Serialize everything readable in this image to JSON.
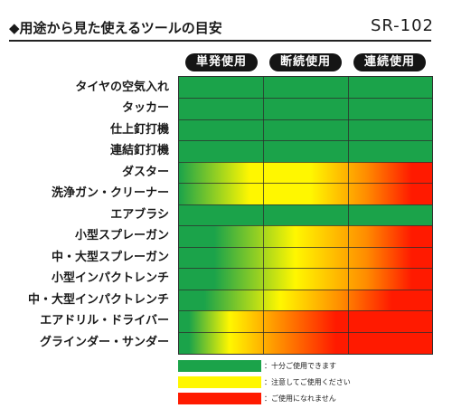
{
  "header": {
    "title": "◆用途から見た使えるツールの目安",
    "model": "SR-102"
  },
  "columns": [
    {
      "label": "単発使用"
    },
    {
      "label": "断続使用"
    },
    {
      "label": "連続使用"
    }
  ],
  "rows": [
    {
      "label": "タイヤの空気入れ",
      "rating": "green"
    },
    {
      "label": "タッカー",
      "rating": "green"
    },
    {
      "label": "仕上釘打機",
      "rating": "green"
    },
    {
      "label": "連結釘打機",
      "rating": "green"
    },
    {
      "label": "ダスター",
      "rating": "gradient"
    },
    {
      "label": "洗浄ガン・クリーナー",
      "rating": "gradient"
    },
    {
      "label": "エアブラシ",
      "rating": "green"
    },
    {
      "label": "小型スプレーガン",
      "rating": "gradient"
    },
    {
      "label": "中・大型スプレーガン",
      "rating": "gradient"
    },
    {
      "label": "小型インパクトレンチ",
      "rating": "gradient"
    },
    {
      "label": "中・大型インパクトレンチ",
      "rating": "gradient"
    },
    {
      "label": "エアドリル・ドライバー",
      "rating": "gradient"
    },
    {
      "label": "グラインダー・サンダー",
      "rating": "gradient"
    }
  ],
  "legend": [
    {
      "text": "：十分ご使用できます",
      "color": "#1ba34a"
    },
    {
      "text": "：注意してご使用ください",
      "color": "#fff700"
    },
    {
      "text": "：ご使用になれません",
      "color": "#ff1a00"
    }
  ],
  "colors": {
    "green": "#1ba34a",
    "yellow": "#fff700",
    "orange": "#ff8c00",
    "red": "#ff1a00",
    "header_bg": "#151515",
    "grid_line": "#2e2e2e"
  }
}
